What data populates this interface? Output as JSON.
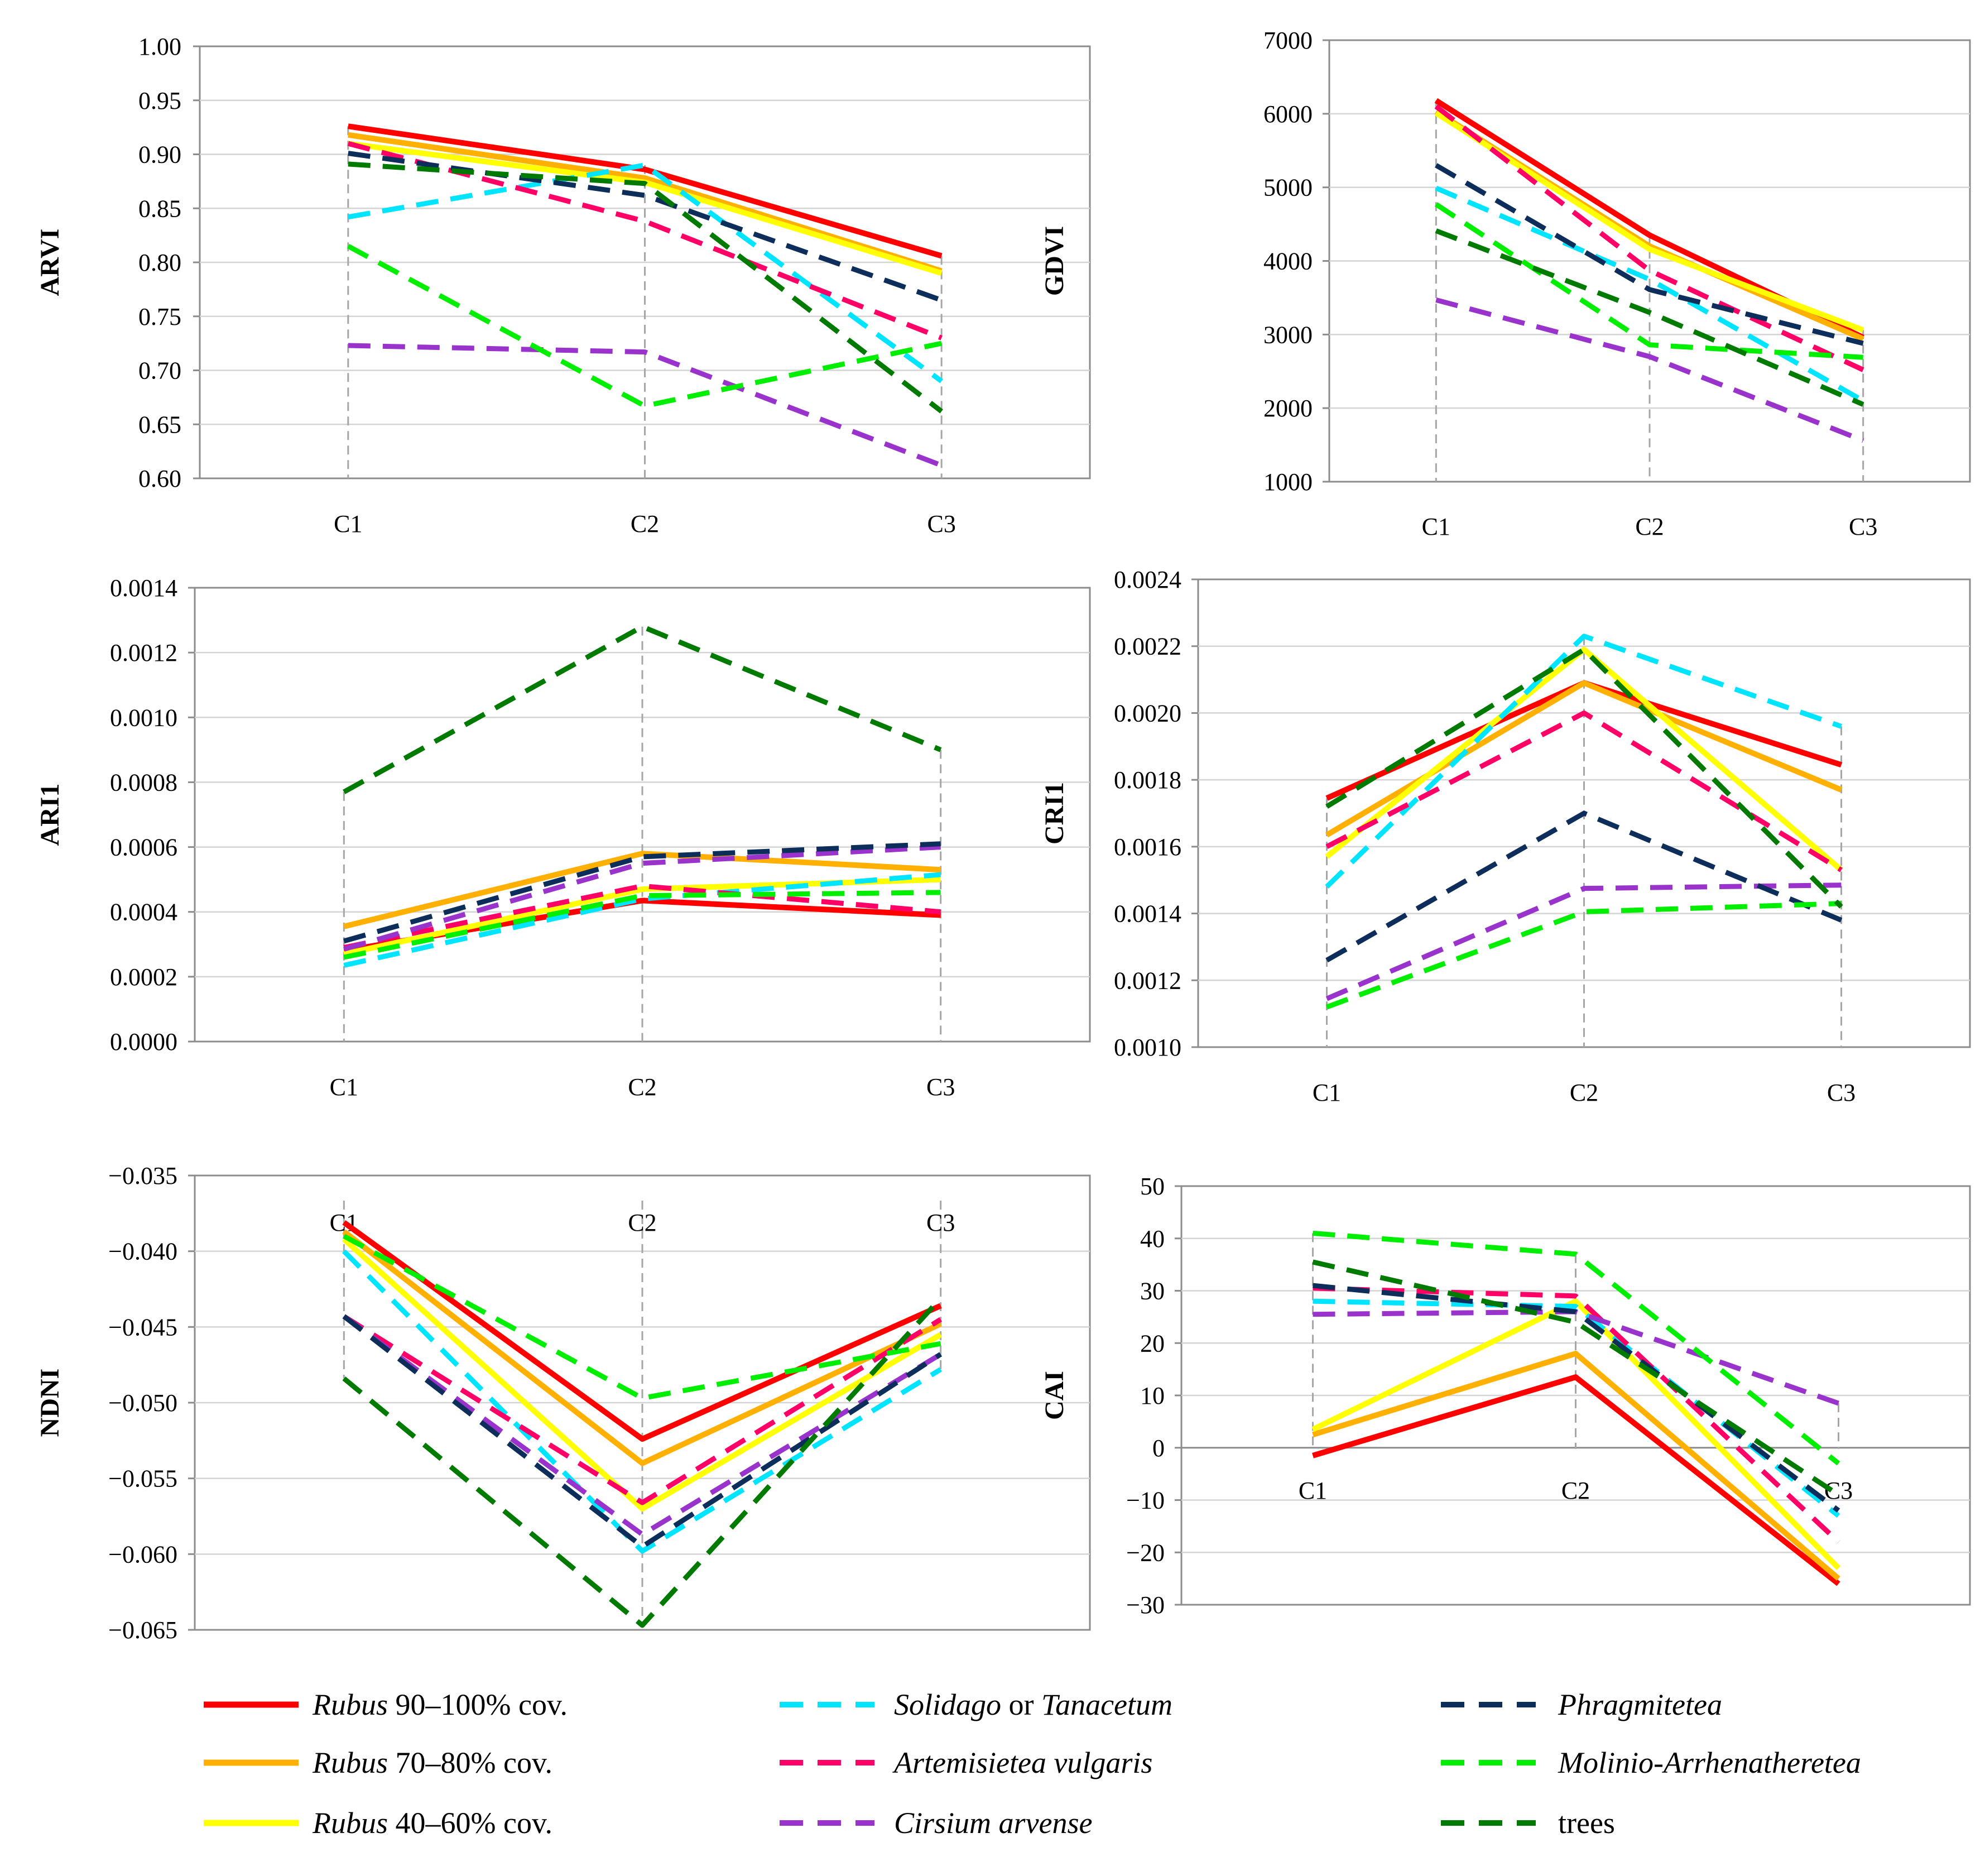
{
  "series": [
    {
      "id": "rubus90",
      "name": "Rubus 90–100% cov.",
      "name_parts": [
        {
          "t": "Rubus",
          "i": true
        },
        {
          "t": " 90–100% cov.",
          "i": false
        }
      ],
      "color": "#ff0000",
      "dash": false
    },
    {
      "id": "rubus70",
      "name": "Rubus 70–80% cov.",
      "name_parts": [
        {
          "t": "Rubus",
          "i": true
        },
        {
          "t": " 70–80% cov.",
          "i": false
        }
      ],
      "color": "#ffb000",
      "dash": false
    },
    {
      "id": "rubus40",
      "name": "Rubus 40–60% cov.",
      "name_parts": [
        {
          "t": "Rubus",
          "i": true
        },
        {
          "t": " 40–60% cov.",
          "i": false
        }
      ],
      "color": "#ffff00",
      "dash": false
    },
    {
      "id": "solidago",
      "name": "Solidago or Tanacetum",
      "name_parts": [
        {
          "t": "Solidago",
          "i": true
        },
        {
          "t": " or ",
          "i": false
        },
        {
          "t": "Tanacetum",
          "i": true
        }
      ],
      "color": "#00e5ff",
      "dash": true
    },
    {
      "id": "artemisietea",
      "name": "Artemisietea vulgaris",
      "name_parts": [
        {
          "t": "Artemisietea vulgaris",
          "i": true
        }
      ],
      "color": "#ff0066",
      "dash": true
    },
    {
      "id": "cirsium",
      "name": "Cirsium arvense",
      "name_parts": [
        {
          "t": "Cirsium arvense",
          "i": true
        }
      ],
      "color": "#9933cc",
      "dash": true
    },
    {
      "id": "phragmitetea",
      "name": "Phragmitetea",
      "name_parts": [
        {
          "t": "Phragmitetea",
          "i": true
        }
      ],
      "color": "#0d2d5a",
      "dash": true
    },
    {
      "id": "molinio",
      "name": "Molinio-Arrhenatheretea",
      "name_parts": [
        {
          "t": "Molinio-Arrhenatheretea",
          "i": true
        }
      ],
      "color": "#00ee00",
      "dash": true
    },
    {
      "id": "trees",
      "name": "trees",
      "name_parts": [
        {
          "t": "trees",
          "i": false
        }
      ],
      "color": "#007a00",
      "dash": true
    }
  ],
  "chart_data": [
    {
      "type": "line",
      "title": "",
      "ylabel": "ARVI",
      "xlabel": "",
      "categories": [
        "C1",
        "C2",
        "C3"
      ],
      "ylim": [
        0.6,
        1.0
      ],
      "yticks": [
        "0.60",
        "0.65",
        "0.70",
        "0.75",
        "0.80",
        "0.85",
        "0.90",
        "0.95",
        "1.00"
      ],
      "series": [
        {
          "name": "Rubus 90–100% cov.",
          "values": [
            0.926,
            0.886,
            0.806
          ]
        },
        {
          "name": "Rubus 70–80% cov.",
          "values": [
            0.918,
            0.878,
            0.792
          ]
        },
        {
          "name": "Rubus 40–60% cov.",
          "values": [
            0.91,
            0.874,
            0.79
          ]
        },
        {
          "name": "Solidago or Tanacetum",
          "values": [
            0.842,
            0.89,
            0.69
          ]
        },
        {
          "name": "Artemisietea vulgaris",
          "values": [
            0.91,
            0.838,
            0.73
          ]
        },
        {
          "name": "Cirsium arvense",
          "values": [
            0.723,
            0.717,
            0.612
          ]
        },
        {
          "name": "Phragmitetea",
          "values": [
            0.901,
            0.862,
            0.765
          ]
        },
        {
          "name": "Molinio-Arrhenatheretea",
          "values": [
            0.815,
            0.667,
            0.725
          ]
        },
        {
          "name": "trees",
          "values": [
            0.891,
            0.873,
            0.662
          ]
        }
      ]
    },
    {
      "type": "line",
      "title": "",
      "ylabel": "GDVI",
      "xlabel": "",
      "categories": [
        "C1",
        "C2",
        "C3"
      ],
      "ylim": [
        1000,
        7000
      ],
      "yticks": [
        "1000",
        "2000",
        "3000",
        "4000",
        "5000",
        "6000",
        "7000"
      ],
      "series": [
        {
          "name": "Rubus 90–100% cov.",
          "values": [
            6180,
            4350,
            2960
          ]
        },
        {
          "name": "Rubus 70–80% cov.",
          "values": [
            6030,
            4200,
            2940
          ]
        },
        {
          "name": "Rubus 40–60% cov.",
          "values": [
            6010,
            4160,
            3060
          ]
        },
        {
          "name": "Solidago or Tanacetum",
          "values": [
            4990,
            3750,
            2100
          ]
        },
        {
          "name": "Artemisietea vulgaris",
          "values": [
            6100,
            3870,
            2520
          ]
        },
        {
          "name": "Cirsium arvense",
          "values": [
            3470,
            2700,
            1560
          ]
        },
        {
          "name": "Phragmitetea",
          "values": [
            5300,
            3610,
            2880
          ]
        },
        {
          "name": "Molinio-Arrhenatheretea",
          "values": [
            4770,
            2860,
            2690
          ]
        },
        {
          "name": "trees",
          "values": [
            4410,
            3300,
            2050
          ]
        }
      ]
    },
    {
      "type": "line",
      "title": "",
      "ylabel": "ARI1",
      "xlabel": "",
      "categories": [
        "C1",
        "C2",
        "C3"
      ],
      "ylim": [
        0.0,
        0.0014
      ],
      "yticks": [
        "0.0000",
        "0.0002",
        "0.0004",
        "0.0006",
        "0.0008",
        "0.0010",
        "0.0012",
        "0.0014"
      ],
      "series": [
        {
          "name": "Rubus 90–100% cov.",
          "values": [
            0.00028,
            0.000435,
            0.00039
          ]
        },
        {
          "name": "Rubus 70–80% cov.",
          "values": [
            0.000355,
            0.00058,
            0.00053
          ]
        },
        {
          "name": "Rubus 40–60% cov.",
          "values": [
            0.00027,
            0.00047,
            0.0005
          ]
        },
        {
          "name": "Solidago or Tanacetum",
          "values": [
            0.000235,
            0.00044,
            0.000515
          ]
        },
        {
          "name": "Artemisietea vulgaris",
          "values": [
            0.00029,
            0.00048,
            0.0004
          ]
        },
        {
          "name": "Cirsium arvense",
          "values": [
            0.000285,
            0.00055,
            0.0006
          ]
        },
        {
          "name": "Phragmitetea",
          "values": [
            0.00031,
            0.00057,
            0.00061
          ]
        },
        {
          "name": "Molinio-Arrhenatheretea",
          "values": [
            0.00026,
            0.00045,
            0.00046
          ]
        },
        {
          "name": "trees",
          "values": [
            0.00077,
            0.00128,
            0.0009
          ]
        }
      ]
    },
    {
      "type": "line",
      "title": "",
      "ylabel": "CRI1",
      "xlabel": "",
      "categories": [
        "C1",
        "C2",
        "C3"
      ],
      "ylim": [
        0.001,
        0.0024
      ],
      "yticks": [
        "0.0010",
        "0.0012",
        "0.0014",
        "0.0016",
        "0.0018",
        "0.0020",
        "0.0022",
        "0.0024"
      ],
      "series": [
        {
          "name": "Rubus 90–100% cov.",
          "values": [
            0.001745,
            0.00209,
            0.001845
          ]
        },
        {
          "name": "Rubus 70–80% cov.",
          "values": [
            0.001635,
            0.00209,
            0.00177
          ]
        },
        {
          "name": "Rubus 40–60% cov.",
          "values": [
            0.00157,
            0.00219,
            0.00153
          ]
        },
        {
          "name": "Solidago or Tanacetum",
          "values": [
            0.00148,
            0.00223,
            0.00196
          ]
        },
        {
          "name": "Artemisietea vulgaris",
          "values": [
            0.0016,
            0.002,
            0.00153
          ]
        },
        {
          "name": "Cirsium arvense",
          "values": [
            0.001145,
            0.001475,
            0.001485
          ]
        },
        {
          "name": "Phragmitetea",
          "values": [
            0.00126,
            0.0017,
            0.00138
          ]
        },
        {
          "name": "Molinio-Arrhenatheretea",
          "values": [
            0.00112,
            0.001405,
            0.00143
          ]
        },
        {
          "name": "trees",
          "values": [
            0.00172,
            0.00219,
            0.00142
          ]
        }
      ]
    },
    {
      "type": "line",
      "title": "",
      "ylabel": "NDNI",
      "xlabel": "",
      "categories": [
        "C1",
        "C2",
        "C3"
      ],
      "ylim": [
        -0.065,
        -0.035
      ],
      "yticks": [
        "−0.065",
        "−0.060",
        "−0.055",
        "−0.050",
        "−0.045",
        "−0.040",
        "−0.035"
      ],
      "series": [
        {
          "name": "Rubus 90–100% cov.",
          "values": [
            -0.0381,
            -0.0524,
            -0.0436
          ]
        },
        {
          "name": "Rubus 70–80% cov.",
          "values": [
            -0.0387,
            -0.054,
            -0.0448
          ]
        },
        {
          "name": "Rubus 40–60% cov.",
          "values": [
            -0.0392,
            -0.057,
            -0.0455
          ]
        },
        {
          "name": "Solidago or Tanacetum",
          "values": [
            -0.04,
            -0.0598,
            -0.0478
          ]
        },
        {
          "name": "Artemisietea vulgaris",
          "values": [
            -0.0443,
            -0.0566,
            -0.0445
          ]
        },
        {
          "name": "Cirsium arvense",
          "values": [
            -0.0443,
            -0.0587,
            -0.0468
          ]
        },
        {
          "name": "Phragmitetea",
          "values": [
            -0.0443,
            -0.0595,
            -0.0468
          ]
        },
        {
          "name": "Molinio-Arrhenatheretea",
          "values": [
            -0.039,
            -0.0497,
            -0.0461
          ]
        },
        {
          "name": "trees",
          "values": [
            -0.0484,
            -0.0647,
            -0.0431
          ]
        }
      ]
    },
    {
      "type": "line",
      "title": "",
      "ylabel": "CAI",
      "xlabel": "",
      "categories": [
        "C1",
        "C2",
        "C3"
      ],
      "ylim": [
        -30,
        50
      ],
      "yticks": [
        "−30",
        "−20",
        "−10",
        "0",
        "10",
        "20",
        "30",
        "40",
        "50"
      ],
      "series": [
        {
          "name": "Rubus 90–100% cov.",
          "values": [
            -1.5,
            13.5,
            -26
          ]
        },
        {
          "name": "Rubus 70–80% cov.",
          "values": [
            2.5,
            18,
            -25
          ]
        },
        {
          "name": "Rubus 40–60% cov.",
          "values": [
            3.5,
            28,
            -23
          ]
        },
        {
          "name": "Solidago or Tanacetum",
          "values": [
            28,
            27,
            -13
          ]
        },
        {
          "name": "Artemisietea vulgaris",
          "values": [
            30.5,
            29,
            -18
          ]
        },
        {
          "name": "Cirsium arvense",
          "values": [
            25.5,
            26,
            8.5
          ]
        },
        {
          "name": "Phragmitetea",
          "values": [
            31,
            26,
            -12
          ]
        },
        {
          "name": "Molinio-Arrhenatheretea",
          "values": [
            41,
            37,
            -3
          ]
        },
        {
          "name": "trees",
          "values": [
            35.5,
            24,
            -9
          ]
        }
      ]
    }
  ]
}
